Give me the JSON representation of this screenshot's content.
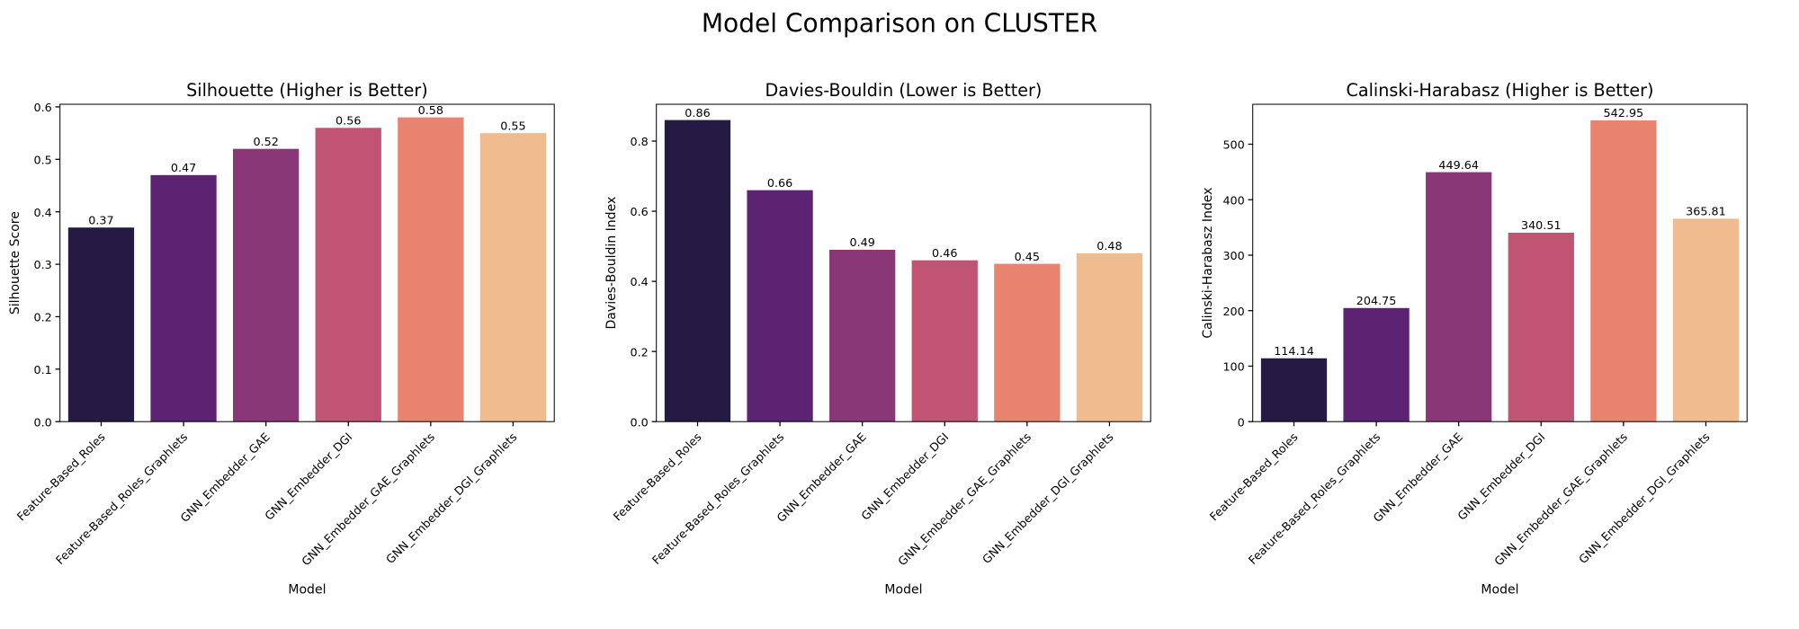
{
  "title": "Model Comparison on CLUSTER",
  "chart_data": [
    {
      "type": "bar",
      "title": "Silhouette (Higher is Better)",
      "xlabel": "Model",
      "ylabel": "Silhouette Score",
      "categories": [
        "Feature-Based_Roles",
        "Feature-Based_Roles_Graphlets",
        "GNN_Embedder_GAE",
        "GNN_Embedder_DGI",
        "GNN_Embedder_GAE_Graphlets",
        "GNN_Embedder_DGI_Graphlets"
      ],
      "values": [
        0.37,
        0.47,
        0.52,
        0.56,
        0.58,
        0.55
      ],
      "colors": [
        "#251a44",
        "#5c2372",
        "#8a3777",
        "#c15373",
        "#e8836f",
        "#f0bc8f"
      ],
      "ylim": [
        0,
        0.605
      ],
      "yticks": [
        {
          "value": 0,
          "label": "0.0"
        },
        0.1,
        0.2,
        0.3,
        0.4,
        0.5,
        0.6
      ]
    },
    {
      "type": "bar",
      "title": "Davies-Bouldin (Lower is Better)",
      "xlabel": "Model",
      "ylabel": "Davies-Bouldin Index",
      "categories": [
        "Feature-Based_Roles",
        "Feature-Based_Roles_Graphlets",
        "GNN_Embedder_GAE",
        "GNN_Embedder_DGI",
        "GNN_Embedder_GAE_Graphlets",
        "GNN_Embedder_DGI_Graphlets"
      ],
      "values": [
        0.86,
        0.66,
        0.49,
        0.46,
        0.45,
        0.48
      ],
      "colors": [
        "#251a44",
        "#5c2372",
        "#8a3777",
        "#c15373",
        "#e8836f",
        "#f0bc8f"
      ],
      "ylim": [
        0,
        0.905
      ],
      "yticks": [
        {
          "value": 0,
          "label": "0.0"
        },
        0.2,
        0.4,
        0.6,
        0.8
      ]
    },
    {
      "type": "bar",
      "title": "Calinski-Harabasz (Higher is Better)",
      "xlabel": "Model",
      "ylabel": "Calinski-Harabasz Index",
      "categories": [
        "Feature-Based_Roles",
        "Feature-Based_Roles_Graphlets",
        "GNN_Embedder_GAE",
        "GNN_Embedder_DGI",
        "GNN_Embedder_GAE_Graphlets",
        "GNN_Embedder_DGI_Graphlets"
      ],
      "values": [
        114.14,
        204.75,
        449.64,
        340.51,
        542.95,
        365.81
      ],
      "colors": [
        "#251a44",
        "#5c2372",
        "#8a3777",
        "#c15373",
        "#e8836f",
        "#f0bc8f"
      ],
      "ylim": [
        0,
        572
      ],
      "yticks": [
        0,
        100,
        200,
        300,
        400,
        500
      ]
    }
  ]
}
